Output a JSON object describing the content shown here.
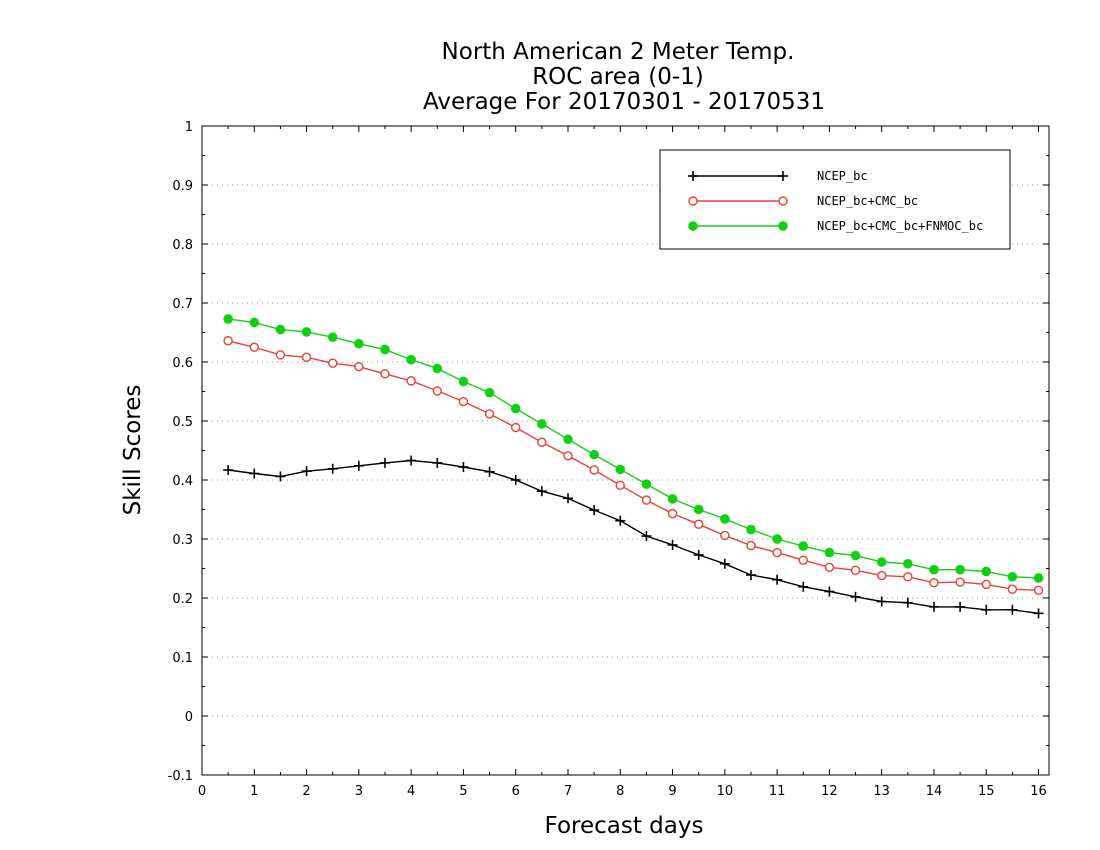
{
  "chart_data": {
    "type": "line",
    "title": [
      "North American 2 Meter Temp.",
      "ROC area (0-1)",
      "Average For 20170301 - 20170531"
    ],
    "xlabel": "Forecast days",
    "ylabel": "Skill Scores",
    "xlim": [
      0,
      16.2
    ],
    "ylim": [
      -0.1,
      1.0
    ],
    "xticks": [
      "0",
      "1",
      "2",
      "3",
      "4",
      "5",
      "6",
      "7",
      "8",
      "9",
      "10",
      "11",
      "12",
      "13",
      "14",
      "15",
      "16"
    ],
    "yticks": [
      "-0.1",
      "0",
      "0.1",
      "0.2",
      "0.3",
      "0.4",
      "0.5",
      "0.6",
      "0.7",
      "0.8",
      "0.9",
      "1"
    ],
    "grid": "horizontal dotted",
    "legend_position": "top-right",
    "x": [
      0.5,
      1.0,
      1.5,
      2.0,
      2.5,
      3.0,
      3.5,
      4.0,
      4.5,
      5.0,
      5.5,
      6.0,
      6.5,
      7.0,
      7.5,
      8.0,
      8.5,
      9.0,
      9.5,
      10.0,
      10.5,
      11.0,
      11.5,
      12.0,
      12.5,
      13.0,
      13.5,
      14.0,
      14.5,
      15.0,
      15.5,
      16.0
    ],
    "series": [
      {
        "name": "NCEP_bc",
        "color": "#000000",
        "marker": "plus",
        "values": [
          0.417,
          0.411,
          0.406,
          0.415,
          0.419,
          0.424,
          0.429,
          0.433,
          0.429,
          0.422,
          0.414,
          0.4,
          0.381,
          0.369,
          0.349,
          0.331,
          0.305,
          0.29,
          0.273,
          0.258,
          0.239,
          0.231,
          0.219,
          0.211,
          0.202,
          0.194,
          0.192,
          0.185,
          0.185,
          0.18,
          0.18,
          0.174
        ]
      },
      {
        "name": "NCEP_bc+CMC_bc",
        "color": "#e8403a",
        "marker": "open-circle",
        "values": [
          0.636,
          0.625,
          0.612,
          0.608,
          0.598,
          0.592,
          0.58,
          0.568,
          0.551,
          0.533,
          0.512,
          0.489,
          0.464,
          0.441,
          0.417,
          0.391,
          0.366,
          0.343,
          0.325,
          0.306,
          0.289,
          0.277,
          0.264,
          0.252,
          0.247,
          0.238,
          0.236,
          0.226,
          0.227,
          0.223,
          0.215,
          0.213
        ]
      },
      {
        "name": "NCEP_bc+CMC_bc+FNMOC_bc",
        "color": "#11d011",
        "marker": "filled-circle",
        "values": [
          0.673,
          0.667,
          0.655,
          0.651,
          0.642,
          0.631,
          0.621,
          0.604,
          0.589,
          0.567,
          0.548,
          0.521,
          0.495,
          0.469,
          0.443,
          0.418,
          0.393,
          0.368,
          0.35,
          0.334,
          0.316,
          0.3,
          0.288,
          0.277,
          0.272,
          0.261,
          0.258,
          0.248,
          0.248,
          0.245,
          0.236,
          0.234
        ]
      }
    ]
  }
}
